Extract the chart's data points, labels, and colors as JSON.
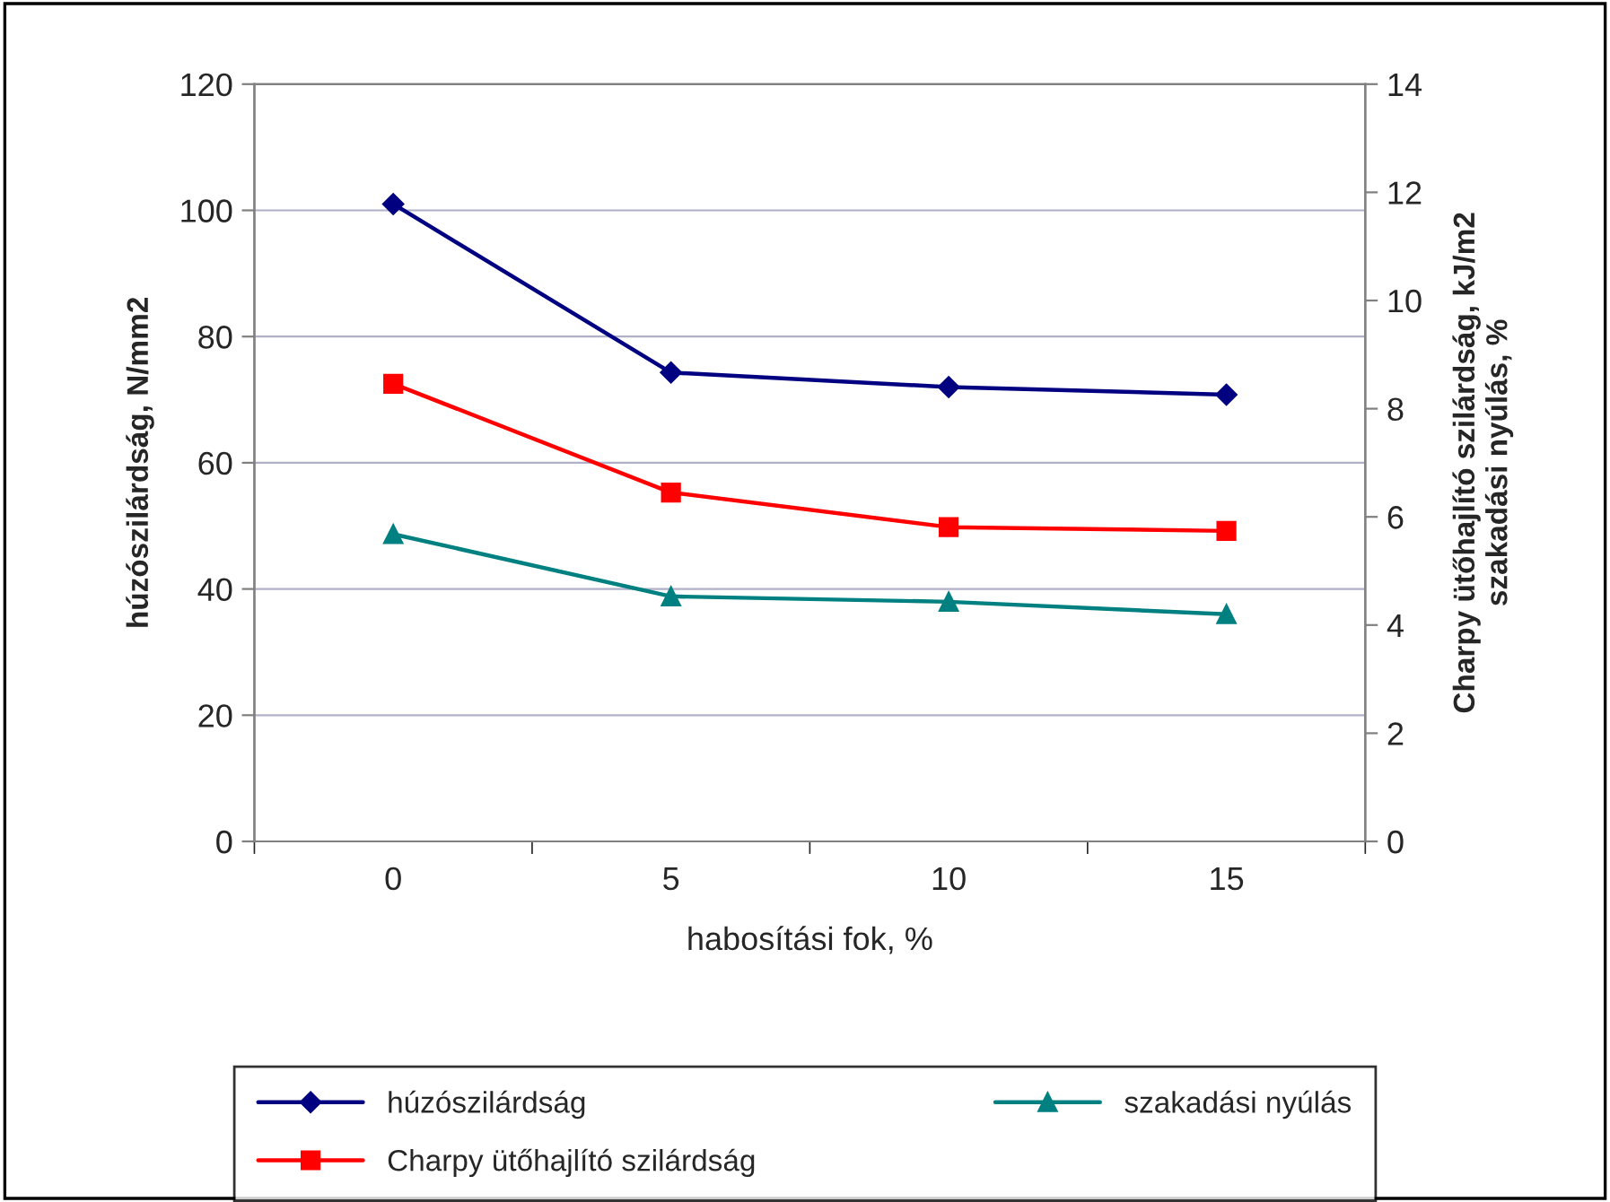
{
  "chart_data": {
    "type": "line",
    "xlabel": "habosítási fok, %",
    "ylabel": "húzószilárdság, N/mm2",
    "y2label": "Charpy ütőhajlító szilárdság, kJ/m2\nszakadási nyúlás, %",
    "categories": [
      "0",
      "5",
      "10",
      "15"
    ],
    "series": [
      {
        "name": "húzószilárdság",
        "color": "#000080",
        "marker": "diamond",
        "values": [
          101,
          74.3,
          72,
          70.8
        ]
      },
      {
        "name": "Charpy ütőhajlító szilárdság",
        "color": "#ff0000",
        "marker": "square",
        "axis": "y2",
        "values": [
          8.46,
          6.45,
          5.81,
          5.74
        ]
      },
      {
        "name": "szakadási nyúlás",
        "color": "#008080",
        "marker": "triangle",
        "axis": "y2",
        "values": [
          5.68,
          4.53,
          4.43,
          4.2
        ]
      }
    ],
    "ylim": [
      0,
      120
    ],
    "yticks": [
      0,
      20,
      40,
      60,
      80,
      100,
      120
    ],
    "y2lim": [
      0,
      14
    ],
    "y2ticks": [
      0,
      2,
      4,
      6,
      8,
      10,
      12,
      14
    ],
    "grid": "y",
    "legend": "bottom"
  }
}
